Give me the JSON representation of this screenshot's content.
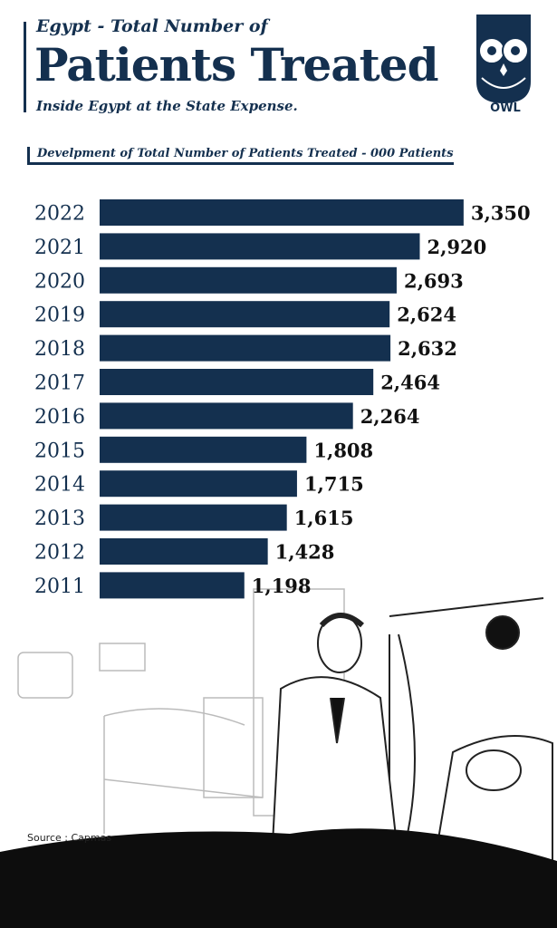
{
  "header": {
    "kicker": "Egypt - Total Number of",
    "title": "Patients Treated",
    "subtitle": "Inside Egypt at the State Expense."
  },
  "logo": {
    "text": "OWL"
  },
  "source": "Source : Capmas",
  "colors": {
    "bar": "#14304f",
    "text": "#14304f",
    "label": "#111111"
  },
  "chart_data": {
    "type": "bar",
    "orientation": "horizontal",
    "title": "Develpment of Total Number of Patients Treated - 000 Patients",
    "categories": [
      "2022",
      "2021",
      "2020",
      "2019",
      "2018",
      "2017",
      "2016",
      "2015",
      "2014",
      "2013",
      "2012",
      "2011"
    ],
    "values": [
      3350,
      2920,
      2693,
      2624,
      2632,
      2464,
      2264,
      1808,
      1715,
      1615,
      1428,
      1198
    ],
    "labels": [
      "3,350",
      "2,920",
      "2,693",
      "2,624",
      "2,632",
      "2,464",
      "2,264",
      "1,808",
      "1,715",
      "1,615",
      "1,428",
      "1,198"
    ],
    "xlabel": "",
    "ylabel": "",
    "grid": false
  }
}
